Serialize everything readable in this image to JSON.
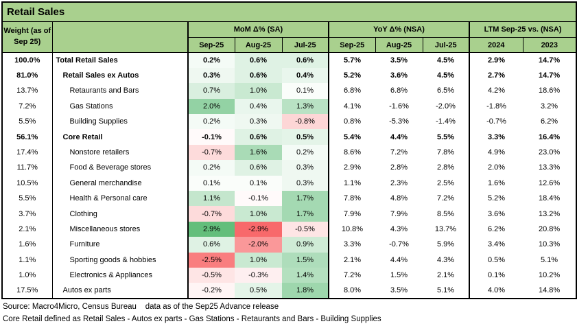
{
  "title": "Retail Sales",
  "header": {
    "weight_label_line1": "Weight (as of",
    "weight_label_line2": "Sep 25)",
    "groups": [
      {
        "label": "MoM Δ% (SA)",
        "cols": [
          "Sep-25",
          "Aug-25",
          "Jul-25"
        ]
      },
      {
        "label": "YoY Δ% (NSA)",
        "cols": [
          "Sep-25",
          "Aug-25",
          "Jul-25"
        ]
      },
      {
        "label": "LTM Sep-25 vs. (NSA)",
        "cols": [
          "2024",
          "2023"
        ]
      }
    ]
  },
  "colors": {
    "header_green": "#A9D08E",
    "border_black": "#000000"
  },
  "heatmap": {
    "applies_to": "MoM columns only",
    "min_value": -2.9,
    "mid_value": 0,
    "max_value": 2.9,
    "min_color": "#F8696B",
    "mid_color": "#FFFFFF",
    "max_color": "#63BE7B"
  },
  "rows": [
    {
      "weight": "100.0%",
      "label": "Total Retail Sales",
      "indent": 0,
      "bold": true,
      "mom": [
        0.2,
        0.6,
        0.6
      ],
      "yoy": [
        "5.7%",
        "3.5%",
        "4.5%"
      ],
      "ltm": [
        "2.9%",
        "14.7%"
      ]
    },
    {
      "weight": "81.0%",
      "label": "Retail Sales ex Autos",
      "indent": 1,
      "bold": true,
      "mom": [
        0.3,
        0.6,
        0.4
      ],
      "yoy": [
        "5.2%",
        "3.6%",
        "4.5%"
      ],
      "ltm": [
        "2.7%",
        "14.7%"
      ]
    },
    {
      "weight": "13.7%",
      "label": "Retaurants and Bars",
      "indent": 2,
      "bold": false,
      "mom": [
        0.7,
        1.0,
        0.1
      ],
      "yoy": [
        "6.8%",
        "6.8%",
        "6.5%"
      ],
      "ltm": [
        "4.2%",
        "18.6%"
      ]
    },
    {
      "weight": "7.2%",
      "label": "Gas Stations",
      "indent": 2,
      "bold": false,
      "mom": [
        2.0,
        0.4,
        1.3
      ],
      "yoy": [
        "4.1%",
        "-1.6%",
        "-2.0%"
      ],
      "ltm": [
        "-1.8%",
        "3.2%"
      ]
    },
    {
      "weight": "5.5%",
      "label": "Building Supplies",
      "indent": 2,
      "bold": false,
      "mom": [
        0.2,
        0.3,
        -0.8
      ],
      "yoy": [
        "0.8%",
        "-5.3%",
        "-1.4%"
      ],
      "ltm": [
        "-0.7%",
        "6.2%"
      ]
    },
    {
      "weight": "56.1%",
      "label": "Core Retail",
      "indent": 1,
      "bold": true,
      "mom": [
        -0.1,
        0.6,
        0.5
      ],
      "yoy": [
        "5.4%",
        "4.4%",
        "5.5%"
      ],
      "ltm": [
        "3.3%",
        "16.4%"
      ]
    },
    {
      "weight": "17.4%",
      "label": "Nonstore retailers",
      "indent": 2,
      "bold": false,
      "mom": [
        -0.7,
        1.6,
        0.2
      ],
      "yoy": [
        "8.6%",
        "7.2%",
        "7.8%"
      ],
      "ltm": [
        "4.9%",
        "23.0%"
      ]
    },
    {
      "weight": "11.7%",
      "label": "Food & Beverage stores",
      "indent": 2,
      "bold": false,
      "mom": [
        0.2,
        0.6,
        0.3
      ],
      "yoy": [
        "2.9%",
        "2.8%",
        "2.8%"
      ],
      "ltm": [
        "2.0%",
        "13.3%"
      ]
    },
    {
      "weight": "10.5%",
      "label": "General merchandise",
      "indent": 2,
      "bold": false,
      "mom": [
        0.1,
        0.1,
        0.3
      ],
      "yoy": [
        "1.1%",
        "2.3%",
        "2.5%"
      ],
      "ltm": [
        "1.6%",
        "12.6%"
      ]
    },
    {
      "weight": "5.5%",
      "label": "Health & Personal care",
      "indent": 2,
      "bold": false,
      "mom": [
        1.1,
        -0.1,
        1.7
      ],
      "yoy": [
        "7.8%",
        "4.8%",
        "7.2%"
      ],
      "ltm": [
        "5.2%",
        "18.4%"
      ]
    },
    {
      "weight": "3.7%",
      "label": "Clothing",
      "indent": 2,
      "bold": false,
      "mom": [
        -0.7,
        1.0,
        1.7
      ],
      "yoy": [
        "7.9%",
        "7.9%",
        "8.5%"
      ],
      "ltm": [
        "3.6%",
        "13.2%"
      ]
    },
    {
      "weight": "2.1%",
      "label": "Miscellaneous stores",
      "indent": 2,
      "bold": false,
      "mom": [
        2.9,
        -2.9,
        -0.5
      ],
      "yoy": [
        "10.8%",
        "4.3%",
        "13.7%"
      ],
      "ltm": [
        "6.2%",
        "20.8%"
      ]
    },
    {
      "weight": "1.6%",
      "label": "Furniture",
      "indent": 2,
      "bold": false,
      "mom": [
        0.6,
        -2.0,
        0.9
      ],
      "yoy": [
        "3.3%",
        "-0.7%",
        "5.9%"
      ],
      "ltm": [
        "3.4%",
        "10.3%"
      ]
    },
    {
      "weight": "1.1%",
      "label": "Sporting goods & hobbies",
      "indent": 2,
      "bold": false,
      "mom": [
        -2.5,
        1.0,
        1.5
      ],
      "yoy": [
        "2.1%",
        "4.4%",
        "4.3%"
      ],
      "ltm": [
        "0.5%",
        "5.1%"
      ]
    },
    {
      "weight": "1.0%",
      "label": "Electronics & Appliances",
      "indent": 2,
      "bold": false,
      "mom": [
        -0.5,
        -0.3,
        1.4
      ],
      "yoy": [
        "7.2%",
        "1.5%",
        "2.1%"
      ],
      "ltm": [
        "0.1%",
        "10.2%"
      ]
    },
    {
      "weight": "17.5%",
      "label": "Autos ex parts",
      "indent": 1,
      "bold": false,
      "mom": [
        -0.2,
        0.5,
        1.8
      ],
      "yoy": [
        "8.0%",
        "3.5%",
        "5.1%"
      ],
      "ltm": [
        "4.0%",
        "14.8%"
      ]
    }
  ],
  "footer": {
    "line1": "Source: Macro4Micro, Census Bureau    data as of the Sep25 Advance release",
    "line2": "Core Retail defined as Retail Sales - Autos ex parts - Gas Stations - Retaurants and Bars - Building Supplies"
  },
  "chart_data": {
    "type": "table",
    "title": "Retail Sales",
    "columns": [
      "Weight (as of Sep 25)",
      "MoM Δ% (SA) Sep-25",
      "MoM Δ% (SA) Aug-25",
      "MoM Δ% (SA) Jul-25",
      "YoY Δ% (NSA) Sep-25",
      "YoY Δ% (NSA) Aug-25",
      "YoY Δ% (NSA) Jul-25",
      "LTM Sep-25 vs. 2024 (NSA)",
      "LTM Sep-25 vs. 2023 (NSA)"
    ],
    "row_labels": [
      "Total Retail Sales",
      "Retail Sales ex Autos",
      "Retaurants and Bars",
      "Gas Stations",
      "Building Supplies",
      "Core Retail",
      "Nonstore retailers",
      "Food & Beverage stores",
      "General merchandise",
      "Health & Personal care",
      "Clothing",
      "Miscellaneous stores",
      "Furniture",
      "Sporting goods & hobbies",
      "Electronics & Appliances",
      "Autos ex parts"
    ],
    "values_pct": [
      [
        100.0,
        0.2,
        0.6,
        0.6,
        5.7,
        3.5,
        4.5,
        2.9,
        14.7
      ],
      [
        81.0,
        0.3,
        0.6,
        0.4,
        5.2,
        3.6,
        4.5,
        2.7,
        14.7
      ],
      [
        13.7,
        0.7,
        1.0,
        0.1,
        6.8,
        6.8,
        6.5,
        4.2,
        18.6
      ],
      [
        7.2,
        2.0,
        0.4,
        1.3,
        4.1,
        -1.6,
        -2.0,
        -1.8,
        3.2
      ],
      [
        5.5,
        0.2,
        0.3,
        -0.8,
        0.8,
        -5.3,
        -1.4,
        -0.7,
        6.2
      ],
      [
        56.1,
        -0.1,
        0.6,
        0.5,
        5.4,
        4.4,
        5.5,
        3.3,
        16.4
      ],
      [
        17.4,
        -0.7,
        1.6,
        0.2,
        8.6,
        7.2,
        7.8,
        4.9,
        23.0
      ],
      [
        11.7,
        0.2,
        0.6,
        0.3,
        2.9,
        2.8,
        2.8,
        2.0,
        13.3
      ],
      [
        10.5,
        0.1,
        0.1,
        0.3,
        1.1,
        2.3,
        2.5,
        1.6,
        12.6
      ],
      [
        5.5,
        1.1,
        -0.1,
        1.7,
        7.8,
        4.8,
        7.2,
        5.2,
        18.4
      ],
      [
        3.7,
        -0.7,
        1.0,
        1.7,
        7.9,
        7.9,
        8.5,
        3.6,
        13.2
      ],
      [
        2.1,
        2.9,
        -2.9,
        -0.5,
        10.8,
        4.3,
        13.7,
        6.2,
        20.8
      ],
      [
        1.6,
        0.6,
        -2.0,
        0.9,
        3.3,
        -0.7,
        5.9,
        3.4,
        10.3
      ],
      [
        1.1,
        -2.5,
        1.0,
        1.5,
        2.1,
        4.4,
        4.3,
        0.5,
        5.1
      ],
      [
        1.0,
        -0.5,
        -0.3,
        1.4,
        7.2,
        1.5,
        2.1,
        0.1,
        10.2
      ],
      [
        17.5,
        -0.2,
        0.5,
        1.8,
        8.0,
        3.5,
        5.1,
        4.0,
        14.8
      ]
    ],
    "heatmap_columns": [
      "MoM Δ% (SA) Sep-25",
      "MoM Δ% (SA) Aug-25",
      "MoM Δ% (SA) Jul-25"
    ],
    "color_scale": {
      "min": {
        "value": -2.9,
        "color": "#F8696B"
      },
      "mid": {
        "value": 0,
        "color": "#FFFFFF"
      },
      "max": {
        "value": 2.9,
        "color": "#63BE7B"
      }
    }
  }
}
